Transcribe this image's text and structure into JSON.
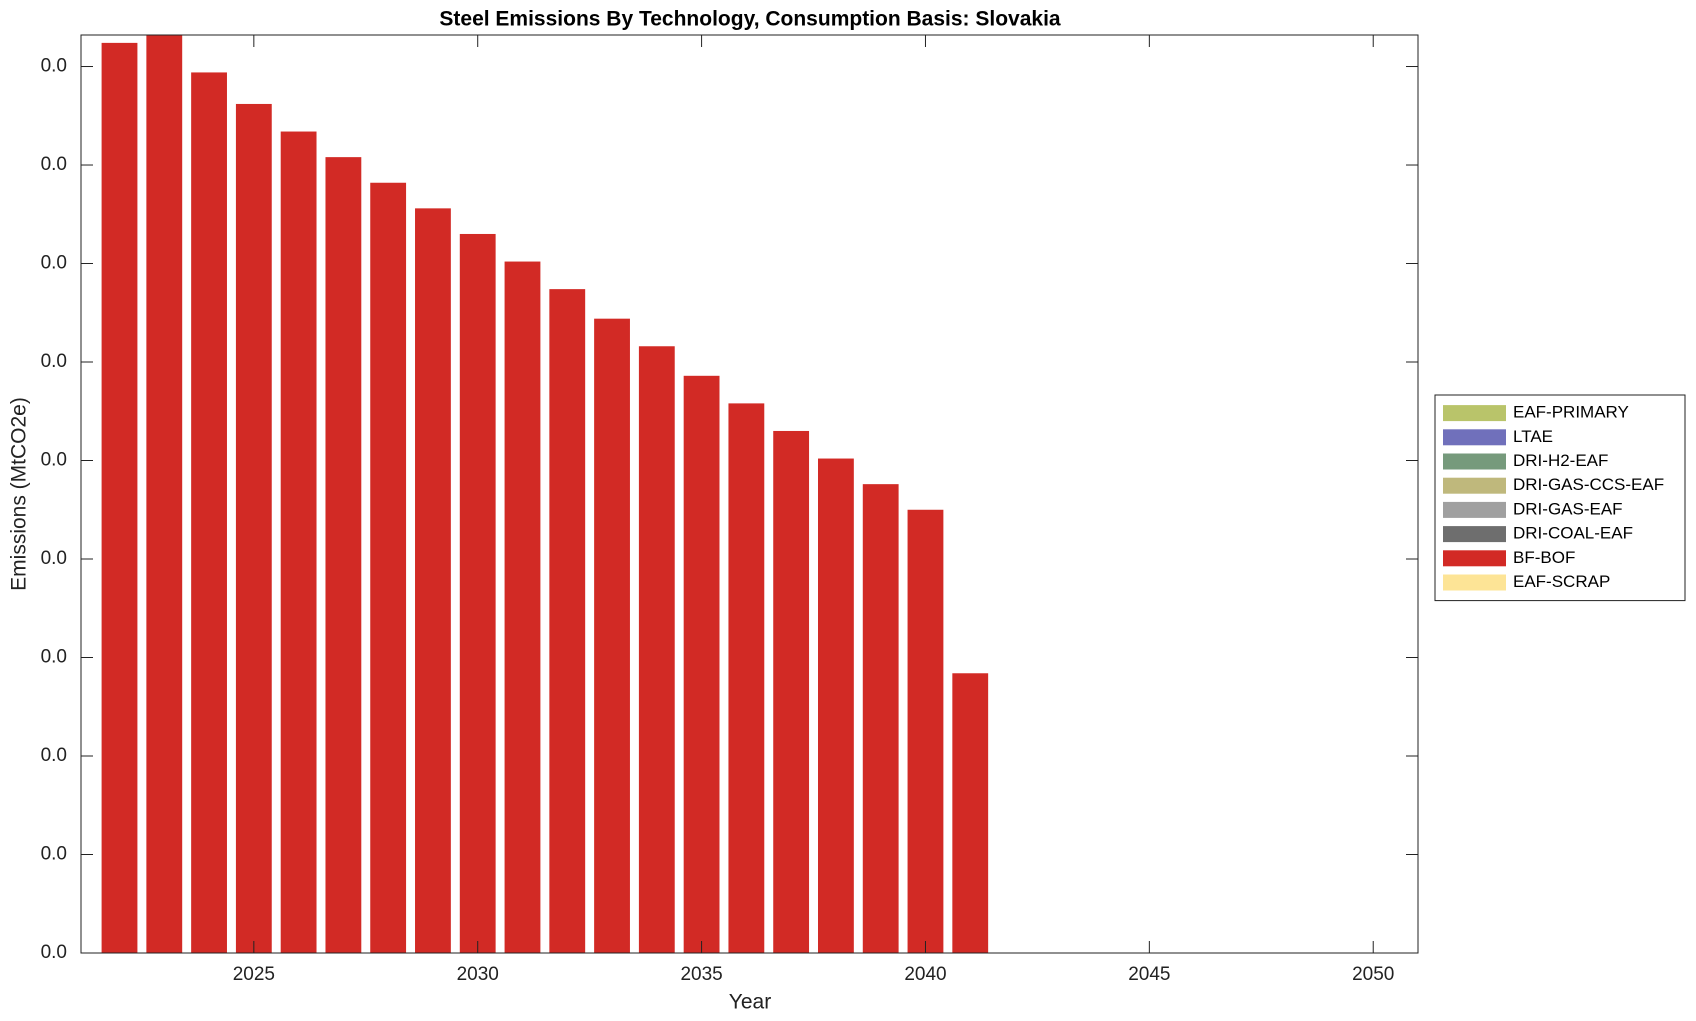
{
  "chart_data": {
    "type": "stacked_bar",
    "title": "Steel Emissions By Technology, Consumption Basis: Slovakia",
    "xlabel": "Year",
    "ylabel": "Emissions (MtCO2e)",
    "x": [
      2022,
      2023,
      2024,
      2025,
      2026,
      2027,
      2028,
      2029,
      2030,
      2031,
      2032,
      2033,
      2034,
      2035,
      2036,
      2037,
      2038,
      2039,
      2040,
      2041
    ],
    "series": [
      {
        "name": "EAF-PRIMARY",
        "color": "#b9c46a",
        "values": [
          0,
          0,
          0,
          0,
          0,
          0,
          0,
          0,
          0,
          0,
          0,
          0,
          0,
          0,
          0,
          0,
          0,
          0,
          0,
          0
        ]
      },
      {
        "name": "LTAE",
        "color": "#7070bb",
        "values": [
          0,
          0,
          0,
          0,
          0,
          0,
          0,
          0,
          0,
          0,
          0,
          0,
          0,
          0,
          0,
          0,
          0,
          0,
          0,
          0
        ]
      },
      {
        "name": "DRI-H2-EAF",
        "color": "#769a7c",
        "values": [
          0,
          0,
          0,
          0,
          0,
          0,
          0,
          0,
          0,
          0,
          0,
          0,
          0,
          0,
          0,
          0,
          0,
          0,
          0,
          0
        ]
      },
      {
        "name": "DRI-GAS-CCS-EAF",
        "color": "#bfb87c",
        "values": [
          0,
          0,
          0,
          0,
          0,
          0,
          0,
          0,
          0,
          0,
          0,
          0,
          0,
          0,
          0,
          0,
          0,
          0,
          0,
          0
        ]
      },
      {
        "name": "DRI-GAS-EAF",
        "color": "#a0a0a0",
        "values": [
          0,
          0,
          0,
          0,
          0,
          0,
          0,
          0,
          0,
          0,
          0,
          0,
          0,
          0,
          0,
          0,
          0,
          0,
          0,
          0
        ]
      },
      {
        "name": "DRI-COAL-EAF",
        "color": "#6e6e6e",
        "values": [
          0,
          0,
          0,
          0,
          0,
          0,
          0,
          0,
          0,
          0,
          0,
          0,
          0,
          0,
          0,
          0,
          0,
          0,
          0,
          0
        ]
      },
      {
        "name": "BF-BOF",
        "color": "#d22a25",
        "values": [
          0.0462,
          0.0466,
          0.0447,
          0.0431,
          0.0417,
          0.0404,
          0.0391,
          0.0378,
          0.0365,
          0.0351,
          0.0337,
          0.0322,
          0.0308,
          0.0293,
          0.0279,
          0.0265,
          0.0251,
          0.0238,
          0.0225,
          0.0142
        ]
      },
      {
        "name": "EAF-SCRAP",
        "color": "#fde496",
        "values": [
          0,
          0,
          0,
          0,
          0,
          0,
          0,
          0,
          0,
          0,
          0,
          0,
          0,
          0,
          0,
          0,
          0,
          0,
          0,
          0
        ]
      }
    ],
    "xlim": [
      2021.14,
      2051
    ],
    "xticks": [
      2025,
      2030,
      2035,
      2040,
      2045,
      2050
    ],
    "ylim": [
      0,
      0.0466
    ],
    "yticks": [
      {
        "value": 0,
        "label": "0.0"
      },
      {
        "value": 0.005,
        "label": "0.0"
      },
      {
        "value": 0.01,
        "label": "0.0"
      },
      {
        "value": 0.015,
        "label": "0.0"
      },
      {
        "value": 0.02,
        "label": "0.0"
      },
      {
        "value": 0.025,
        "label": "0.0"
      },
      {
        "value": 0.03,
        "label": "0.0"
      },
      {
        "value": 0.035,
        "label": "0.0"
      },
      {
        "value": 0.04,
        "label": "0.0"
      },
      {
        "value": 0.045,
        "label": "0.0"
      }
    ],
    "legend": "right"
  }
}
